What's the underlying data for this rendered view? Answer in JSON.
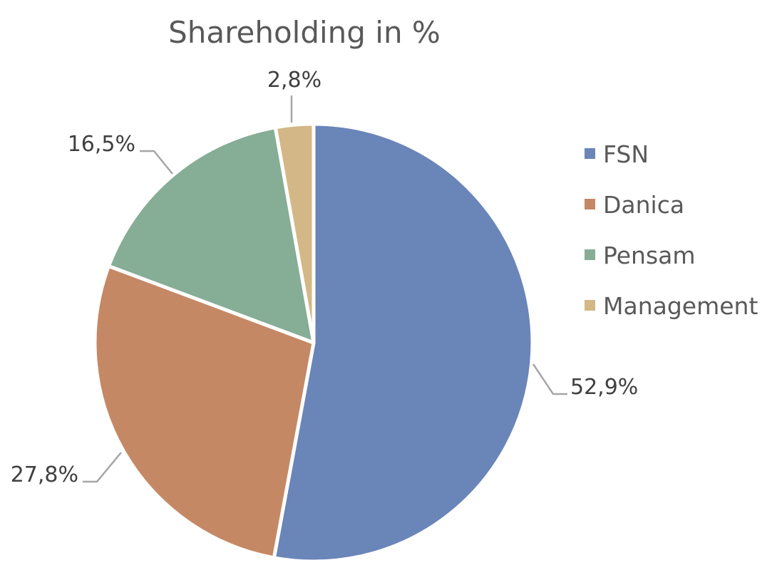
{
  "chart_data": {
    "type": "pie",
    "title": "Shareholding in %",
    "slices": [
      {
        "name": "FSN",
        "value": 52.9,
        "label": "52,9%",
        "color": "#6a85b8"
      },
      {
        "name": "Danica",
        "value": 27.8,
        "label": "27,8%",
        "color": "#c58865"
      },
      {
        "name": "Pensam",
        "value": 16.5,
        "label": "16,5%",
        "color": "#86ad96"
      },
      {
        "name": "Management",
        "value": 2.8,
        "label": "2,8%",
        "color": "#d4b786"
      }
    ],
    "legend_position": "right",
    "start_angle": "12 o'clock",
    "direction": "clockwise"
  }
}
